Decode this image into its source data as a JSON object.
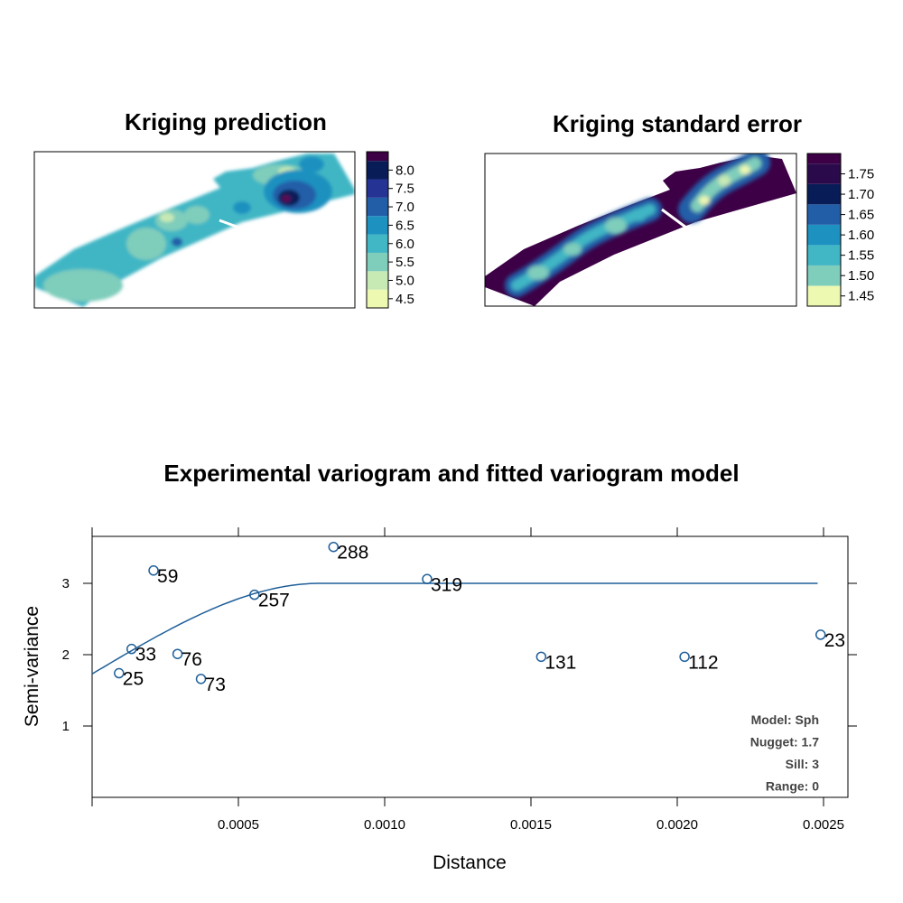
{
  "chart_data": [
    {
      "type": "heatmap",
      "title": "Kriging prediction",
      "colorbar": {
        "ticks": [
          "8.0",
          "7.5",
          "7.0",
          "6.5",
          "6.0",
          "5.5",
          "5.0",
          "4.5"
        ],
        "breaks": [
          4.25,
          4.75,
          5.25,
          5.75,
          6.25,
          6.75,
          7.25,
          7.75,
          8.25,
          8.5
        ],
        "colors": [
          "#edf8b1",
          "#c7e9b4",
          "#7fcdbb",
          "#41b6c4",
          "#1d91c0",
          "#225ea8",
          "#253494",
          "#081d58",
          "#3d0046"
        ]
      }
    },
    {
      "type": "heatmap",
      "title": "Kriging standard error",
      "colorbar": {
        "ticks": [
          "1.75",
          "1.70",
          "1.65",
          "1.60",
          "1.55",
          "1.50",
          "1.45"
        ],
        "breaks": [
          1.425,
          1.475,
          1.525,
          1.575,
          1.625,
          1.675,
          1.725,
          1.775,
          1.8
        ],
        "colors": [
          "#edf8b1",
          "#7fcdbb",
          "#41b6c4",
          "#1d91c0",
          "#225ea8",
          "#081d58",
          "#2a0a4a",
          "#3d0046"
        ]
      }
    },
    {
      "type": "scatter",
      "title": "Experimental variogram and fitted variogram model",
      "xlabel": "Distance",
      "ylabel": "Semi-variance",
      "xlim": [
        0.0,
        0.0026
      ],
      "ylim": [
        0,
        3.6
      ],
      "xticks": [
        0.0,
        0.0005,
        0.001,
        0.0015,
        0.002,
        0.0025
      ],
      "xtick_labels": [
        "",
        "0.0005",
        "0.0010",
        "0.0015",
        "0.0020",
        "0.0025"
      ],
      "yticks": [
        1,
        2,
        3
      ],
      "ytick_labels": [
        "1",
        "2",
        "3"
      ],
      "points": [
        {
          "x": 9.2e-05,
          "y": 1.74,
          "label": "25"
        },
        {
          "x": 0.000135,
          "y": 2.08,
          "label": "33"
        },
        {
          "x": 0.00021,
          "y": 3.18,
          "label": "59"
        },
        {
          "x": 0.000292,
          "y": 2.01,
          "label": "76"
        },
        {
          "x": 0.000372,
          "y": 1.66,
          "label": "73"
        },
        {
          "x": 0.000555,
          "y": 2.84,
          "label": "257"
        },
        {
          "x": 0.000825,
          "y": 3.51,
          "label": "288"
        },
        {
          "x": 0.001145,
          "y": 3.06,
          "label": "319"
        },
        {
          "x": 0.001535,
          "y": 1.97,
          "label": "131"
        },
        {
          "x": 0.002025,
          "y": 1.97,
          "label": "112"
        },
        {
          "x": 0.00249,
          "y": 2.28,
          "label": "23"
        }
      ],
      "model": {
        "type": "Sph",
        "nugget": 1.73,
        "sill": 3.0,
        "range": 0.00078,
        "x_end": 0.00248
      },
      "annotations": [
        "Model: Sph",
        "Nugget: 1.7",
        "Sill: 3",
        "Range: 0"
      ],
      "point_color": "#1f5f99",
      "line_color": "#1f5f99"
    }
  ]
}
